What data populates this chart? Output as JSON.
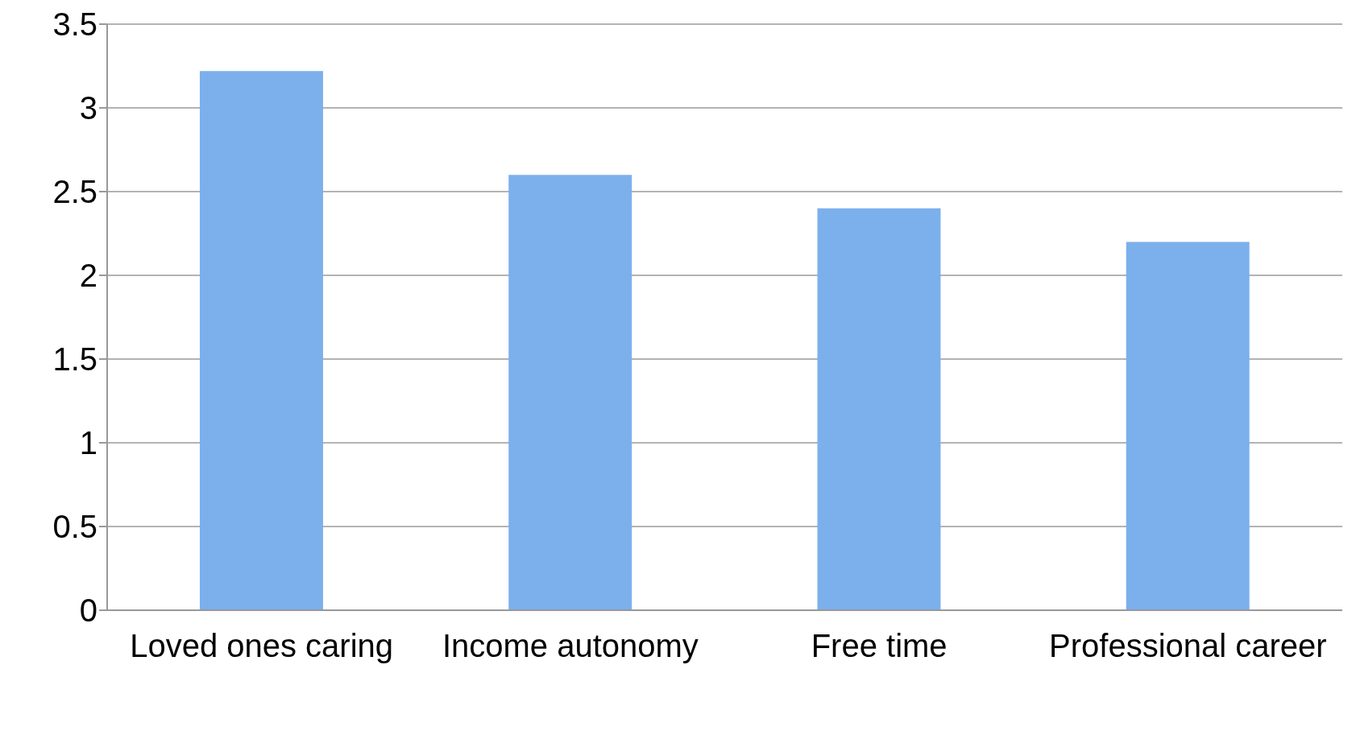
{
  "chart_data": {
    "type": "bar",
    "categories": [
      "Loved ones caring",
      "Income autonomy",
      "Free time",
      "Professional career"
    ],
    "values": [
      3.22,
      2.6,
      2.4,
      2.2
    ],
    "color": "#7cb0ec",
    "ylim": [
      0,
      3.5
    ],
    "yticks": [
      0,
      0.5,
      1,
      1.5,
      2,
      2.5,
      3,
      3.5
    ],
    "grid": "y",
    "legend": false
  }
}
